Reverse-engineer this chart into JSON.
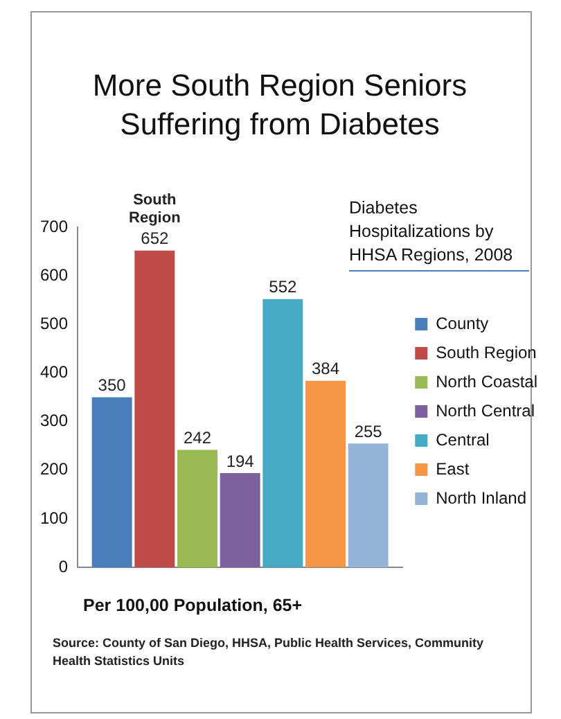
{
  "chart_data": {
    "type": "bar",
    "title": "More South Region Seniors Suffering from Diabetes",
    "legend_title": "Diabetes Hospitalizations by HHSA Regions,  2008",
    "xlabel": "Per 100,00 Population, 65+",
    "categories": [
      null
    ],
    "series": [
      {
        "name": "County",
        "color": "#4a7ebb",
        "values": [
          350
        ]
      },
      {
        "name": "South Region",
        "color": "#be4b48",
        "values": [
          652
        ]
      },
      {
        "name": "North Coastal",
        "color": "#98b954",
        "values": [
          242
        ]
      },
      {
        "name": "North Central",
        "color": "#7d60a0",
        "values": [
          194
        ]
      },
      {
        "name": "Central",
        "color": "#46aac5",
        "values": [
          552
        ]
      },
      {
        "name": "East",
        "color": "#f79646",
        "values": [
          384
        ]
      },
      {
        "name": "North Inland",
        "color": "#95b3d7",
        "values": [
          255
        ]
      }
    ],
    "ylim": [
      0,
      700
    ],
    "yticks": [
      0,
      100,
      200,
      300,
      400,
      500,
      600,
      700
    ],
    "grid": false,
    "legend": "right",
    "data_labels": true,
    "annotations": [
      {
        "text": "South Region",
        "y": 652
      },
      "Source: County of San Diego, HHSA, Public Health Services, Community Health Statistics Units"
    ]
  }
}
